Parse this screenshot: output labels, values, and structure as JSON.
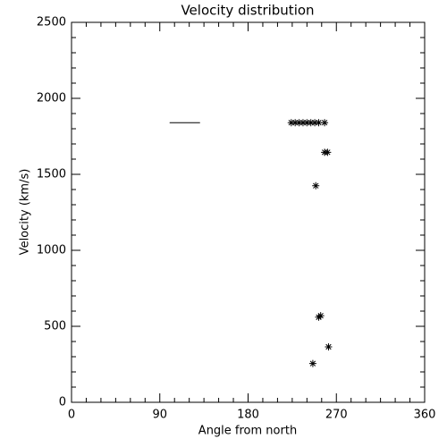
{
  "chart_data": {
    "type": "scatter",
    "title": "Velocity distribution",
    "x_label": "Angle from north",
    "y_label": "Velocity (km/s)",
    "xlim": [
      0,
      360
    ],
    "xticks": [
      0,
      90,
      180,
      270,
      360
    ],
    "ylim": [
      0,
      2500
    ],
    "yticks": [
      0,
      500,
      1000,
      1500,
      2000,
      2500
    ],
    "color": "#000000",
    "series": [
      {
        "x": [
          224,
          228,
          232,
          236,
          240,
          244,
          248,
          252,
          258,
          258,
          261,
          249,
          254,
          252,
          262,
          246
        ],
        "values": [
          1840,
          1840,
          1840,
          1840,
          1840,
          1840,
          1840,
          1840,
          1840,
          1645,
          1645,
          1425,
          570,
          560,
          365,
          255
        ]
      }
    ],
    "range_line": {
      "x": [
        100,
        131
      ],
      "values": [
        1840,
        1840
      ]
    }
  }
}
